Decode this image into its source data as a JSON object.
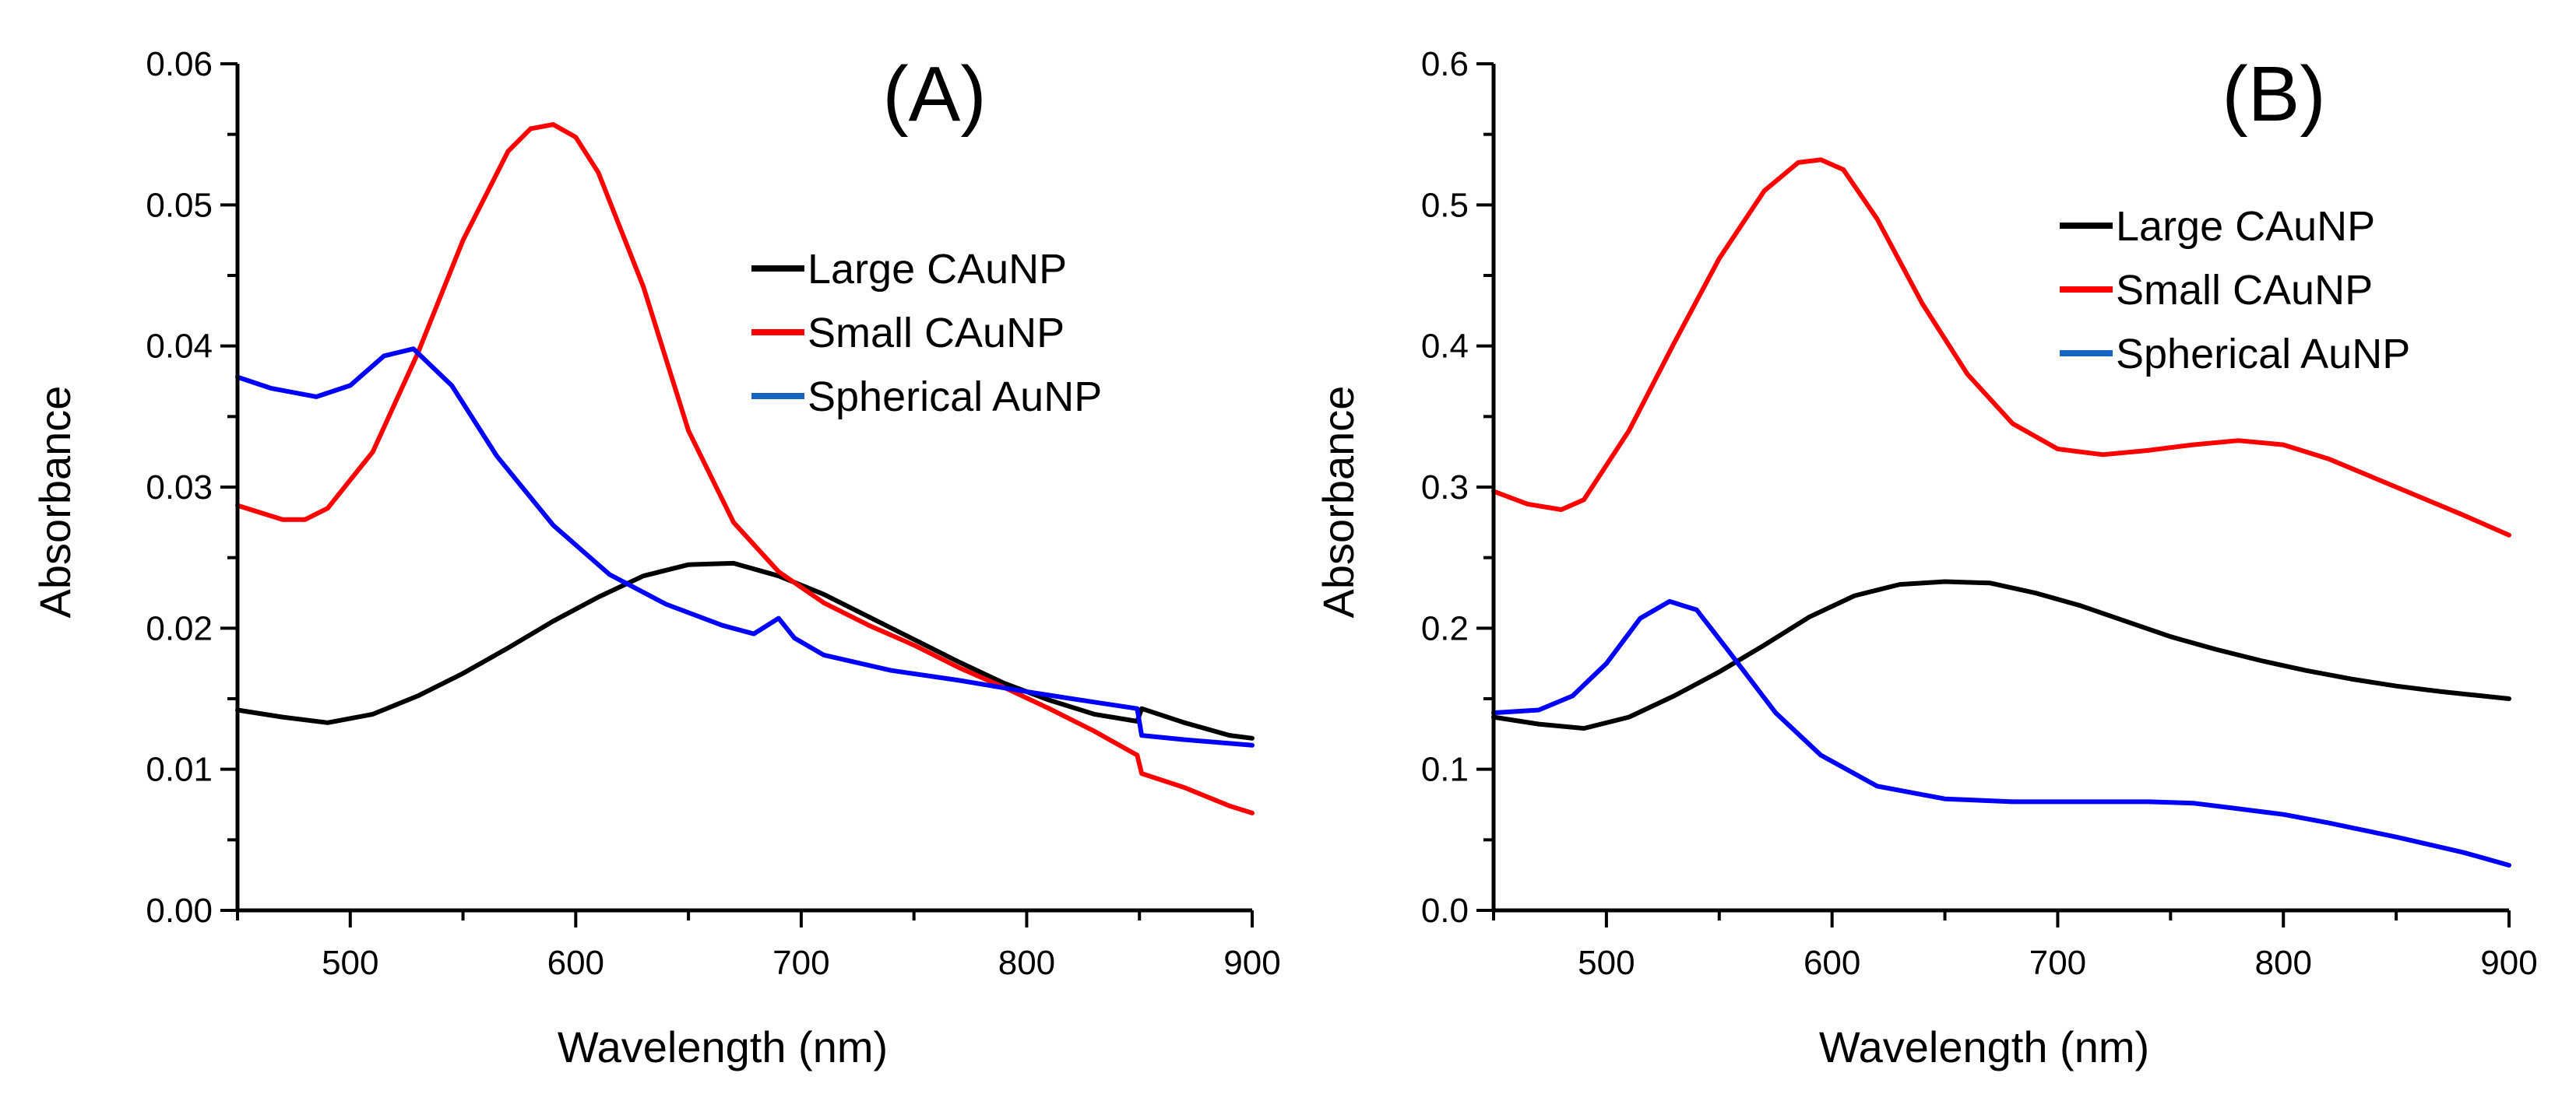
{
  "chart_data": [
    {
      "type": "line",
      "panel_label": "(A)",
      "xlabel": "Wavelength (nm)",
      "ylabel": "Absorbance",
      "xlim": [
        450,
        900
      ],
      "ylim": [
        0,
        0.06
      ],
      "xticks": [
        500,
        600,
        700,
        800,
        900
      ],
      "yticks": [
        0,
        0.01,
        0.02,
        0.03,
        0.04,
        0.05,
        0.06
      ],
      "ytick_labels": [
        "0.00",
        "0.01",
        "0.02",
        "0.03",
        "0.04",
        "0.05",
        "0.06"
      ],
      "xtick_labels": [
        "500",
        "600",
        "700",
        "800",
        "900"
      ],
      "legend_position": "right, upper-middle",
      "series": [
        {
          "name": "Large CAuNP",
          "color": "#000000",
          "x": [
            450,
            470,
            490,
            510,
            530,
            550,
            570,
            590,
            610,
            630,
            650,
            670,
            690,
            710,
            730,
            750,
            770,
            790,
            810,
            830,
            849,
            851,
            870,
            890,
            900
          ],
          "y": [
            0.0142,
            0.0137,
            0.0133,
            0.0139,
            0.0152,
            0.0168,
            0.0186,
            0.0205,
            0.0222,
            0.0237,
            0.0245,
            0.0246,
            0.0237,
            0.0224,
            0.0208,
            0.0192,
            0.0176,
            0.0161,
            0.0149,
            0.0139,
            0.0134,
            0.0143,
            0.0133,
            0.0124,
            0.0122
          ]
        },
        {
          "name": "Small CAuNP",
          "color": "#ff0000",
          "x": [
            450,
            470,
            480,
            490,
            510,
            530,
            550,
            570,
            580,
            590,
            600,
            610,
            630,
            650,
            670,
            690,
            710,
            730,
            750,
            770,
            790,
            810,
            830,
            849,
            851,
            870,
            890,
            900
          ],
          "y": [
            0.0287,
            0.0277,
            0.0277,
            0.0285,
            0.0325,
            0.0395,
            0.0475,
            0.0538,
            0.0554,
            0.0557,
            0.0548,
            0.0523,
            0.0442,
            0.034,
            0.0275,
            0.024,
            0.0218,
            0.0202,
            0.0188,
            0.0172,
            0.0158,
            0.0143,
            0.0127,
            0.011,
            0.0097,
            0.0087,
            0.0074,
            0.0069
          ]
        },
        {
          "name": "Spherical AuNP",
          "color": "#0000ff",
          "x": [
            450,
            465,
            485,
            500,
            515,
            528,
            545,
            565,
            590,
            615,
            640,
            665,
            679,
            690,
            697,
            710,
            740,
            770,
            800,
            820,
            849,
            851,
            870,
            900
          ],
          "y": [
            0.0378,
            0.037,
            0.0364,
            0.0372,
            0.0393,
            0.0398,
            0.0372,
            0.0322,
            0.0273,
            0.0238,
            0.0217,
            0.0202,
            0.0196,
            0.0207,
            0.0193,
            0.0181,
            0.017,
            0.0163,
            0.0155,
            0.015,
            0.0143,
            0.0124,
            0.0121,
            0.0117
          ]
        }
      ]
    },
    {
      "type": "line",
      "panel_label": "(B)",
      "xlabel": "Wavelength (nm)",
      "ylabel": "Absorbance",
      "xlim": [
        450,
        900
      ],
      "ylim": [
        0,
        0.6
      ],
      "xticks": [
        500,
        600,
        700,
        800,
        900
      ],
      "yticks": [
        0,
        0.1,
        0.2,
        0.3,
        0.4,
        0.5,
        0.6
      ],
      "ytick_labels": [
        "0.0",
        "0.1",
        "0.2",
        "0.3",
        "0.4",
        "0.5",
        "0.6"
      ],
      "xtick_labels": [
        "500",
        "600",
        "700",
        "800",
        "900"
      ],
      "legend_position": "top-right",
      "series": [
        {
          "name": "Large CAuNP",
          "color": "#000000",
          "x": [
            450,
            470,
            490,
            510,
            530,
            550,
            570,
            590,
            610,
            630,
            650,
            670,
            690,
            710,
            730,
            750,
            770,
            790,
            810,
            830,
            850,
            870,
            900
          ],
          "y": [
            0.137,
            0.132,
            0.129,
            0.137,
            0.152,
            0.169,
            0.188,
            0.208,
            0.223,
            0.231,
            0.233,
            0.232,
            0.225,
            0.216,
            0.205,
            0.194,
            0.185,
            0.177,
            0.17,
            0.164,
            0.159,
            0.155,
            0.15
          ]
        },
        {
          "name": "Small CAuNP",
          "color": "#ff0000",
          "x": [
            450,
            465,
            480,
            490,
            510,
            530,
            550,
            570,
            585,
            595,
            605,
            620,
            640,
            660,
            680,
            700,
            720,
            740,
            760,
            780,
            800,
            820,
            850,
            880,
            900
          ],
          "y": [
            0.297,
            0.288,
            0.284,
            0.291,
            0.34,
            0.402,
            0.462,
            0.51,
            0.53,
            0.532,
            0.525,
            0.49,
            0.43,
            0.38,
            0.345,
            0.327,
            0.323,
            0.326,
            0.33,
            0.333,
            0.33,
            0.32,
            0.3,
            0.28,
            0.266
          ]
        },
        {
          "name": "Spherical AuNP",
          "color": "#0000ff",
          "x": [
            450,
            470,
            485,
            500,
            515,
            528,
            540,
            555,
            575,
            595,
            620,
            650,
            680,
            710,
            740,
            760,
            780,
            800,
            820,
            850,
            880,
            900
          ],
          "y": [
            0.14,
            0.142,
            0.152,
            0.175,
            0.207,
            0.219,
            0.213,
            0.182,
            0.14,
            0.11,
            0.088,
            0.079,
            0.077,
            0.077,
            0.077,
            0.076,
            0.072,
            0.068,
            0.062,
            0.052,
            0.041,
            0.032
          ]
        }
      ]
    }
  ]
}
